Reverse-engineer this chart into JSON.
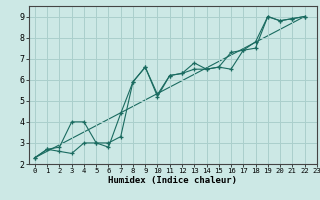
{
  "xlabel": "Humidex (Indice chaleur)",
  "bg_color": "#cce8e5",
  "grid_color": "#aacfcc",
  "line_color": "#1a6b60",
  "marker": "+",
  "xlim": [
    -0.5,
    23
  ],
  "ylim": [
    2,
    9.5
  ],
  "xticks": [
    0,
    1,
    2,
    3,
    4,
    5,
    6,
    7,
    8,
    9,
    10,
    11,
    12,
    13,
    14,
    15,
    16,
    17,
    18,
    19,
    20,
    21,
    22,
    23
  ],
  "yticks": [
    2,
    3,
    4,
    5,
    6,
    7,
    8,
    9
  ],
  "series": [
    [
      [
        0,
        2.3
      ],
      [
        1,
        2.7
      ],
      [
        2,
        2.8
      ],
      [
        3,
        4.0
      ],
      [
        4,
        4.0
      ],
      [
        5,
        3.0
      ],
      [
        6,
        3.0
      ],
      [
        7,
        3.3
      ],
      [
        8,
        5.9
      ],
      [
        9,
        6.6
      ],
      [
        10,
        5.3
      ],
      [
        11,
        6.2
      ],
      [
        12,
        6.3
      ],
      [
        13,
        6.8
      ],
      [
        14,
        6.5
      ],
      [
        15,
        6.6
      ],
      [
        16,
        6.5
      ],
      [
        17,
        7.4
      ],
      [
        18,
        7.5
      ],
      [
        19,
        9.0
      ],
      [
        20,
        8.8
      ],
      [
        21,
        8.9
      ],
      [
        22,
        9.0
      ]
    ],
    [
      [
        0,
        2.3
      ],
      [
        1,
        2.7
      ],
      [
        2,
        2.6
      ],
      [
        3,
        2.5
      ],
      [
        4,
        3.0
      ],
      [
        5,
        3.0
      ],
      [
        6,
        2.8
      ],
      [
        7,
        4.4
      ],
      [
        8,
        5.9
      ],
      [
        9,
        6.6
      ],
      [
        10,
        5.2
      ],
      [
        11,
        6.2
      ],
      [
        12,
        6.3
      ],
      [
        13,
        6.5
      ],
      [
        14,
        6.5
      ],
      [
        15,
        6.6
      ],
      [
        16,
        7.3
      ],
      [
        17,
        7.4
      ],
      [
        18,
        7.8
      ],
      [
        19,
        9.0
      ],
      [
        20,
        8.8
      ],
      [
        21,
        8.9
      ],
      [
        22,
        9.0
      ]
    ],
    [
      [
        0,
        2.3
      ],
      [
        22,
        9.0
      ]
    ]
  ]
}
